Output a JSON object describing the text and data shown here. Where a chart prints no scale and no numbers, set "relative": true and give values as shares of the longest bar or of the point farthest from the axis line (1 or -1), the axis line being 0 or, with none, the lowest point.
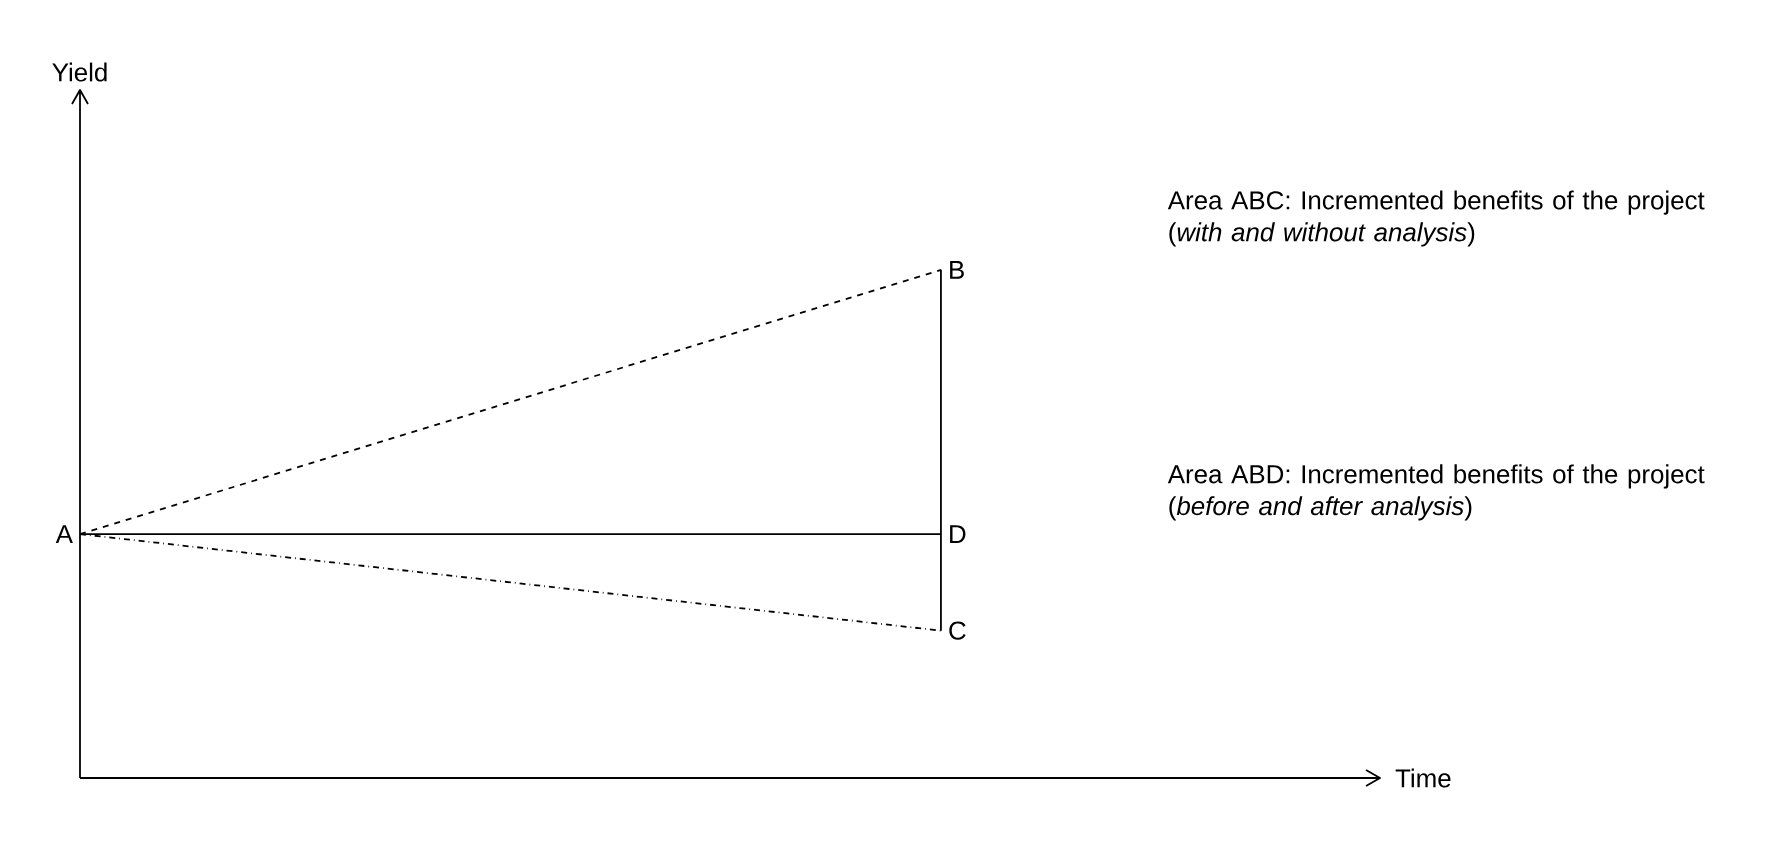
{
  "chart_data": {
    "type": "line",
    "relative": true,
    "xlabel": "Time",
    "categories": [
      null,
      null
    ],
    "marker": "none",
    "series": [
      {
        "color": "#000000",
        "line_style": "dashed",
        "values": [
          0.48,
          1
        ]
      },
      {
        "color": "#000000",
        "line_style": "solid",
        "values": [
          0.48,
          0.48
        ]
      },
      {
        "color": "#000000",
        "line_style": "dashdot",
        "values": [
          0.48,
          0.29
        ]
      }
    ],
    "annotations": [
      "A",
      "B",
      "D",
      "C",
      "Area ABC: Incremented benefits of the project (*with and without analysis*)",
      "Area ABD: Incremented benefits of the project (*before and after analysis*)",
      "Yield"
    ]
  }
}
